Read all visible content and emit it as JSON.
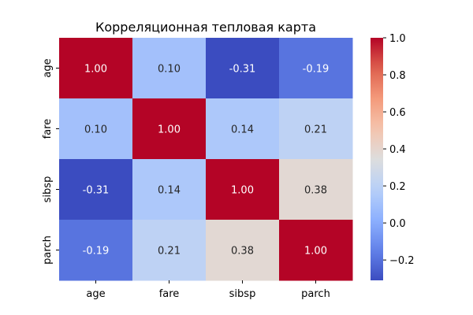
{
  "chart_data": {
    "type": "heatmap",
    "title": "Корреляционная тепловая карта",
    "xlabel": "",
    "ylabel": "",
    "x_categories": [
      "age",
      "fare",
      "sibsp",
      "parch"
    ],
    "y_categories": [
      "age",
      "fare",
      "sibsp",
      "parch"
    ],
    "values": [
      [
        1.0,
        0.1,
        -0.31,
        -0.19
      ],
      [
        0.1,
        1.0,
        0.14,
        0.21
      ],
      [
        -0.31,
        0.14,
        1.0,
        0.38
      ],
      [
        -0.19,
        0.21,
        0.38,
        1.0
      ]
    ],
    "cell_labels": [
      [
        "1.00",
        "0.10",
        "-0.31",
        "-0.19"
      ],
      [
        "0.10",
        "1.00",
        "0.14",
        "0.21"
      ],
      [
        "-0.31",
        "0.14",
        "1.00",
        "0.38"
      ],
      [
        "-0.19",
        "0.21",
        "0.38",
        "1.00"
      ]
    ],
    "colormap": "coolwarm",
    "color_range": [
      -0.31,
      1.0
    ],
    "colorbar": {
      "position": "right",
      "ticks": [
        -0.2,
        0.0,
        0.2,
        0.4,
        0.6,
        0.8,
        1.0
      ],
      "tick_labels": [
        "−0.2",
        "0.0",
        "0.2",
        "0.4",
        "0.6",
        "0.8",
        "1.0"
      ]
    },
    "grid": false
  }
}
